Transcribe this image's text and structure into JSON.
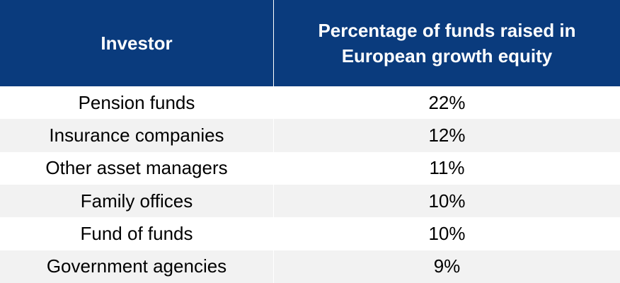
{
  "chart_data": {
    "type": "table",
    "columns": [
      "Investor",
      "Percentage of funds raised in European growth equity"
    ],
    "rows": [
      {
        "investor": "Pension funds",
        "percentage": "22%"
      },
      {
        "investor": "Insurance companies",
        "percentage": "12%"
      },
      {
        "investor": "Other asset managers",
        "percentage": "11%"
      },
      {
        "investor": "Family offices",
        "percentage": "10%"
      },
      {
        "investor": "Fund of funds",
        "percentage": "10%"
      },
      {
        "investor": "Government agencies",
        "percentage": "9%"
      }
    ],
    "colors": {
      "header_background": "#0a3b7d",
      "header_text": "#ffffff",
      "row_alt_background": "#f2f2f2"
    }
  }
}
